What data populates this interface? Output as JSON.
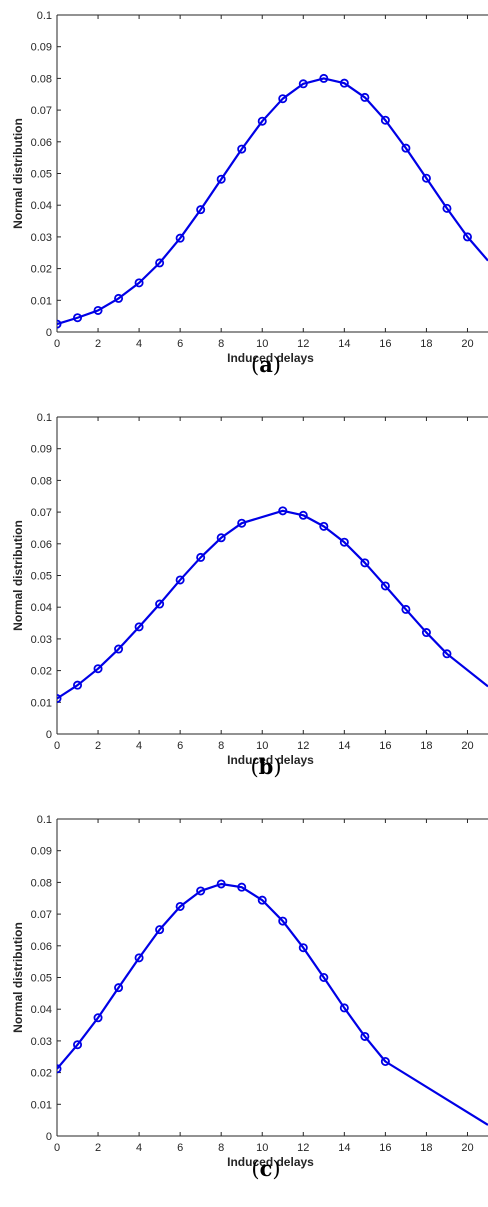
{
  "chart_data": [
    {
      "type": "line",
      "caption": "(a)",
      "caption_letter": "a",
      "xlabel": "Induced delays",
      "ylabel": "Normal distribution",
      "xlim": [
        0,
        21
      ],
      "ylim": [
        0,
        0.1
      ],
      "xticks": [
        "0",
        "2",
        "4",
        "6",
        "8",
        "10",
        "12",
        "14",
        "16",
        "18",
        "20"
      ],
      "yticks": [
        "0",
        "0.01",
        "0.02",
        "0.03",
        "0.04",
        "0.05",
        "0.06",
        "0.07",
        "0.08",
        "0.09",
        "0.1"
      ],
      "grid": false,
      "color": "#0000e6",
      "x": [
        0,
        1,
        2,
        3,
        4,
        5,
        6,
        7,
        8,
        9,
        10,
        11,
        12,
        13,
        14,
        15,
        16,
        17,
        18,
        19,
        20,
        21
      ],
      "y": [
        0.0025,
        0.0045,
        0.0068,
        0.0106,
        0.0155,
        0.0218,
        0.0296,
        0.0386,
        0.0482,
        0.0577,
        0.0665,
        0.0736,
        0.0783,
        0.08,
        0.0785,
        0.074,
        0.0668,
        0.058,
        0.0485,
        0.039,
        0.03,
        0.0225
      ],
      "markers_x": [
        0,
        1,
        2,
        3,
        4,
        5,
        6,
        7,
        8,
        9,
        10,
        11,
        12,
        13,
        14,
        15,
        16,
        17,
        18,
        19,
        20
      ]
    },
    {
      "type": "line",
      "caption": "(b)",
      "caption_letter": "b",
      "xlabel": "Induced delays",
      "ylabel": "Normal distribution",
      "xlim": [
        0,
        21
      ],
      "ylim": [
        0,
        0.1
      ],
      "xticks": [
        "0",
        "2",
        "4",
        "6",
        "8",
        "10",
        "12",
        "14",
        "16",
        "18",
        "20"
      ],
      "yticks": [
        "0",
        "0.01",
        "0.02",
        "0.03",
        "0.04",
        "0.05",
        "0.06",
        "0.07",
        "0.08",
        "0.09",
        "0.1"
      ],
      "grid": false,
      "color": "#0000e6",
      "x": [
        0,
        1,
        2,
        3,
        4,
        5,
        6,
        7,
        8,
        9,
        11,
        12,
        13,
        14,
        15,
        16,
        17,
        18,
        19,
        21
      ],
      "y": [
        0.0112,
        0.0154,
        0.0206,
        0.0268,
        0.0338,
        0.041,
        0.0486,
        0.0557,
        0.0619,
        0.0665,
        0.0704,
        0.069,
        0.0655,
        0.0605,
        0.054,
        0.0467,
        0.0393,
        0.032,
        0.0253,
        0.015
      ],
      "markers_x": [
        0,
        1,
        2,
        3,
        4,
        5,
        6,
        7,
        8,
        9,
        11,
        12,
        13,
        14,
        15,
        16,
        17,
        18,
        19
      ]
    },
    {
      "type": "line",
      "caption": "(c)",
      "caption_letter": "c",
      "xlabel": "Induced delays",
      "ylabel": "Normal distribution",
      "xlim": [
        0,
        21
      ],
      "ylim": [
        0,
        0.1
      ],
      "xticks": [
        "0",
        "2",
        "4",
        "6",
        "8",
        "10",
        "12",
        "14",
        "16",
        "18",
        "20"
      ],
      "yticks": [
        "0",
        "0.01",
        "0.02",
        "0.03",
        "0.04",
        "0.05",
        "0.06",
        "0.07",
        "0.08",
        "0.09",
        "0.1"
      ],
      "grid": false,
      "color": "#0000e6",
      "x": [
        0,
        1,
        2,
        3,
        4,
        5,
        6,
        7,
        8,
        9,
        10,
        11,
        12,
        13,
        14,
        15,
        16,
        21
      ],
      "y": [
        0.0212,
        0.0288,
        0.0373,
        0.0468,
        0.0562,
        0.0651,
        0.0724,
        0.0773,
        0.0795,
        0.0785,
        0.0744,
        0.0678,
        0.0594,
        0.05,
        0.0404,
        0.0314,
        0.0235,
        0.0035
      ],
      "markers_x": [
        0,
        1,
        2,
        3,
        4,
        5,
        6,
        7,
        8,
        9,
        10,
        11,
        12,
        13,
        14,
        15,
        16
      ]
    }
  ]
}
